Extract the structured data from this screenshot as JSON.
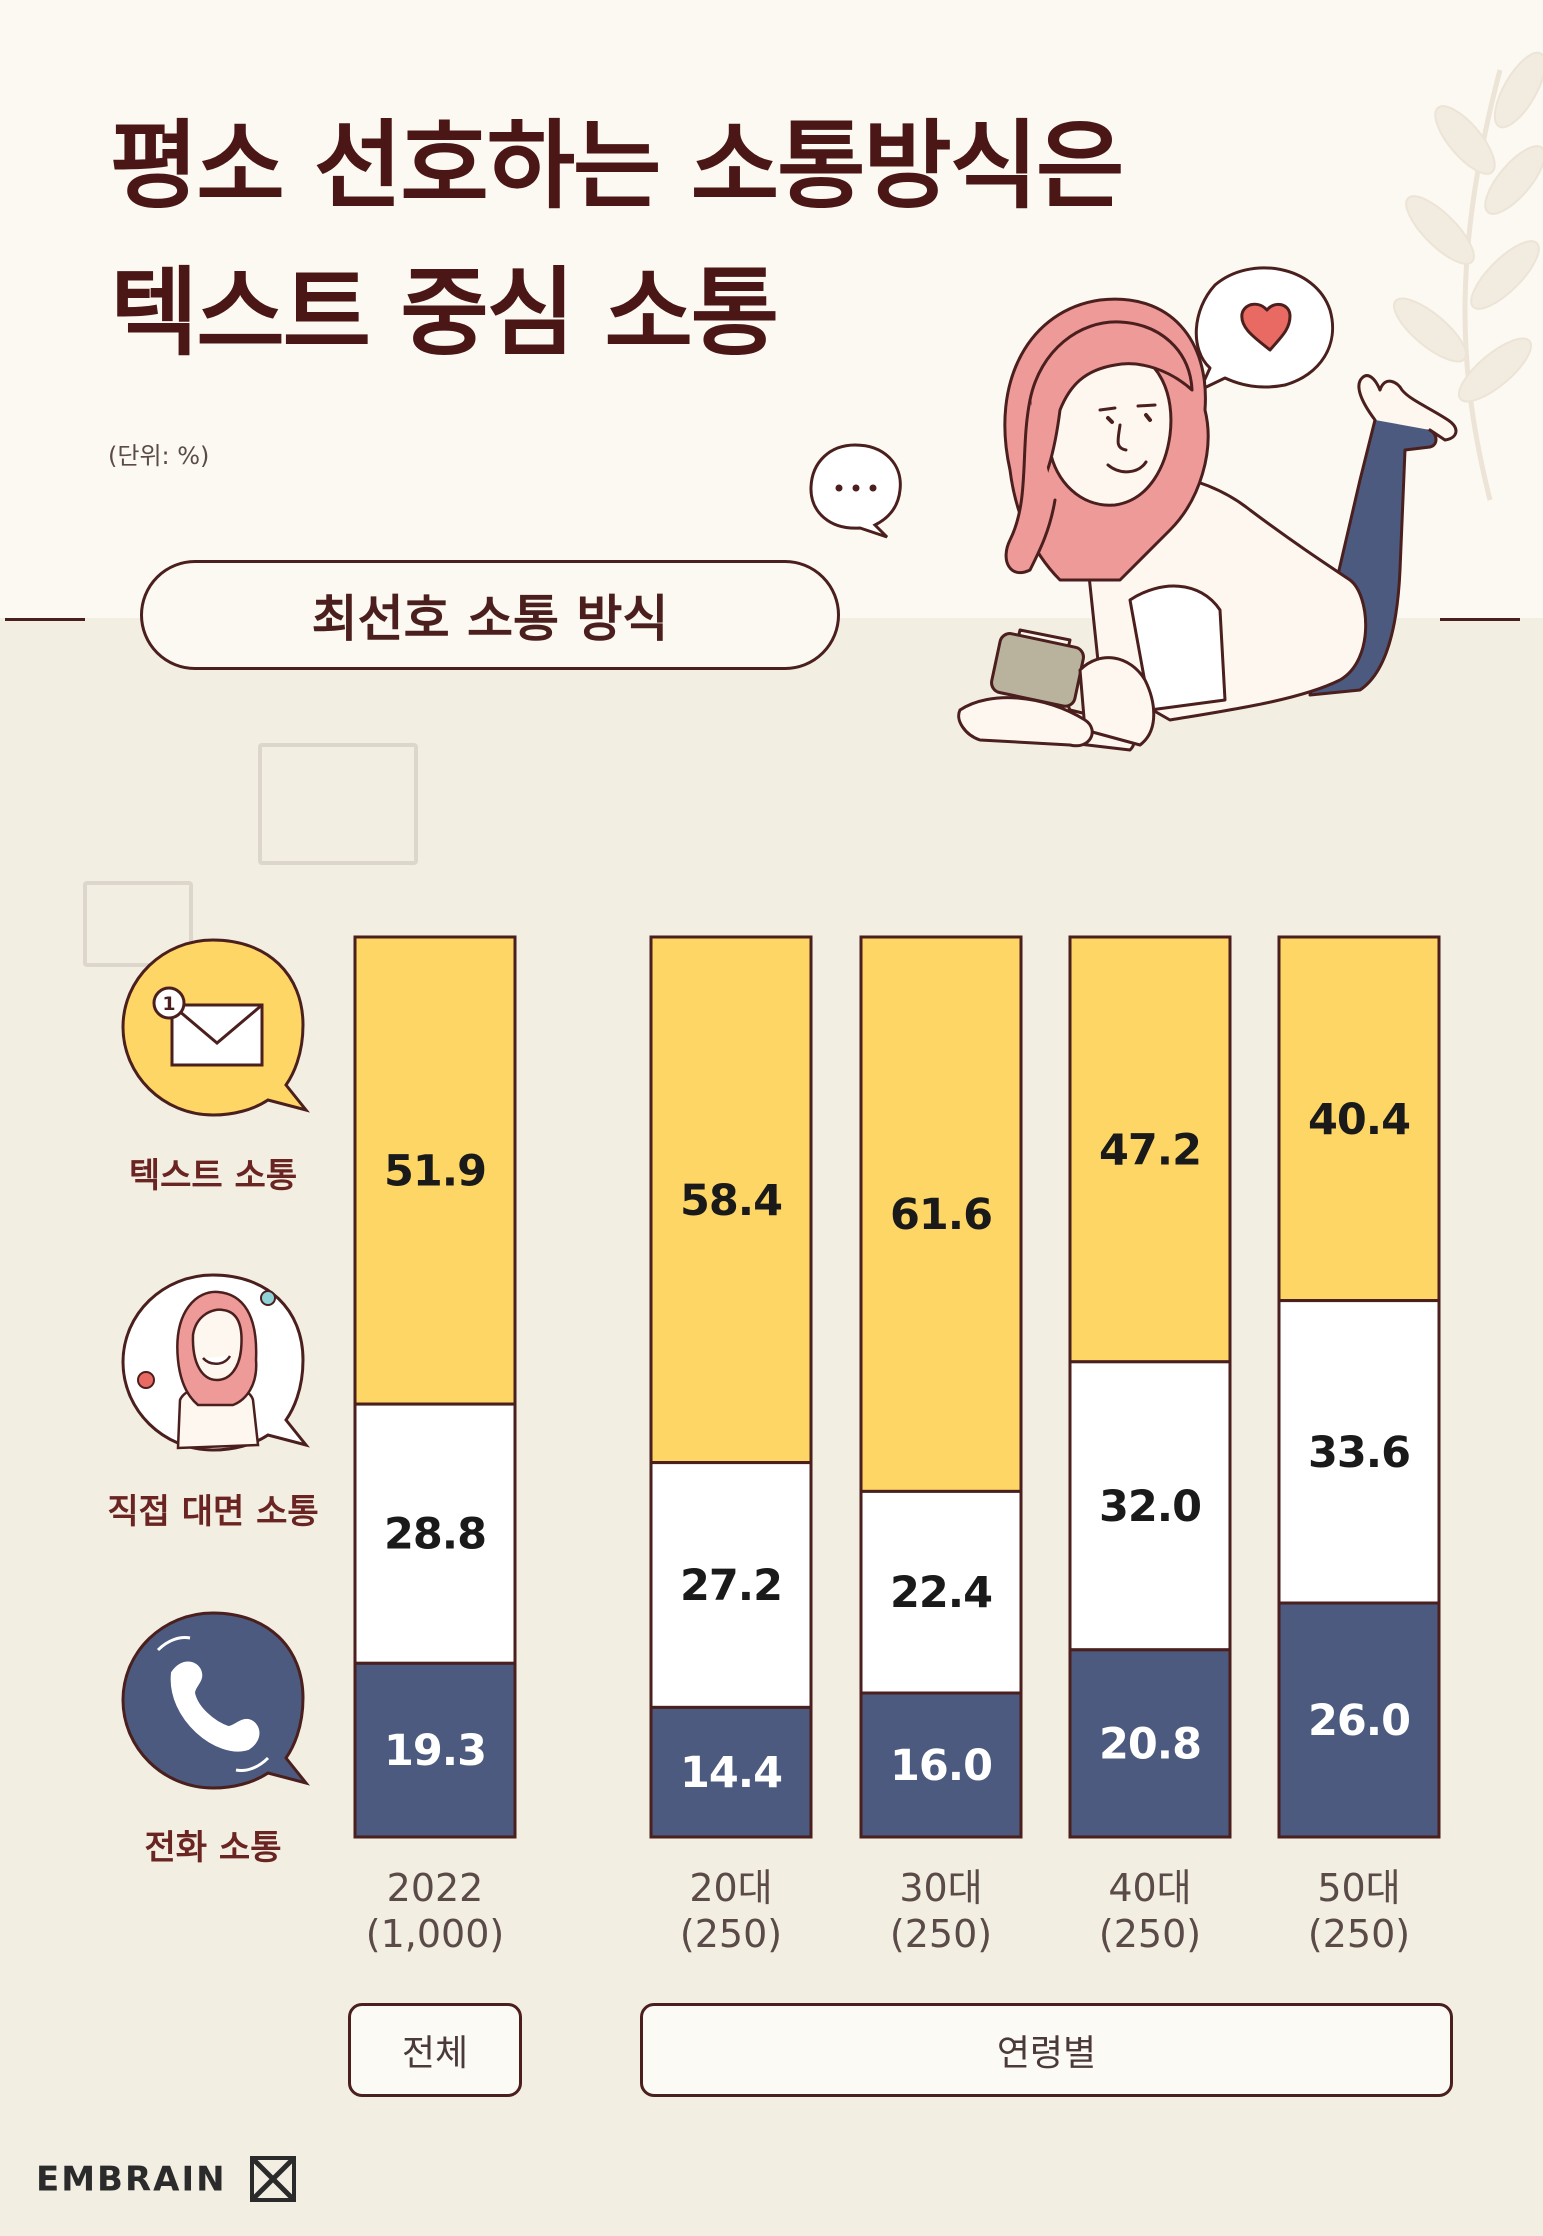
{
  "title": {
    "line1": "평소 선호하는 소통방식은",
    "line2": "텍스트 중심 소통"
  },
  "unit_note": "(단위: %)",
  "section_label": "최선호 소통 방식",
  "legend": [
    {
      "label": "텍스트 소통",
      "icon": "envelope-icon",
      "color": "#fed665"
    },
    {
      "label": "직접 대면 소통",
      "icon": "woman-avatar-icon",
      "color": "#ffffff"
    },
    {
      "label": "전화 소통",
      "icon": "phone-icon",
      "color": "#4b5a7e"
    }
  ],
  "icon_badge": "1",
  "group_labels": {
    "total": "전체",
    "age": "연령별"
  },
  "brand": "EMBRAIN",
  "colors": {
    "text": "#fed665",
    "face": "#ffffff",
    "phone": "#4b5a7e",
    "outline": "#4a1f1d"
  },
  "chart_data": {
    "type": "bar",
    "stacked": true,
    "unit": "%",
    "categories": [
      {
        "line1": "2022",
        "line2": "(1,000)"
      },
      {
        "line1": "20대",
        "line2": "(250)"
      },
      {
        "line1": "30대",
        "line2": "(250)"
      },
      {
        "line1": "40대",
        "line2": "(250)"
      },
      {
        "line1": "50대",
        "line2": "(250)"
      }
    ],
    "series": [
      {
        "name": "텍스트 소통",
        "values": [
          51.9,
          58.4,
          61.6,
          47.2,
          40.4
        ]
      },
      {
        "name": "직접 대면 소통",
        "values": [
          28.8,
          27.2,
          22.4,
          32.0,
          33.6
        ]
      },
      {
        "name": "전화 소통",
        "values": [
          19.3,
          14.4,
          16.0,
          20.8,
          26.0
        ]
      }
    ],
    "value_labels": [
      [
        "51.9",
        "58.4",
        "61.6",
        "47.2",
        "40.4"
      ],
      [
        "28.8",
        "27.2",
        "22.4",
        "32.0",
        "33.6"
      ],
      [
        "19.3",
        "14.4",
        "16.0",
        "20.8",
        "26.0"
      ]
    ],
    "ylim": [
      0,
      100
    ]
  }
}
